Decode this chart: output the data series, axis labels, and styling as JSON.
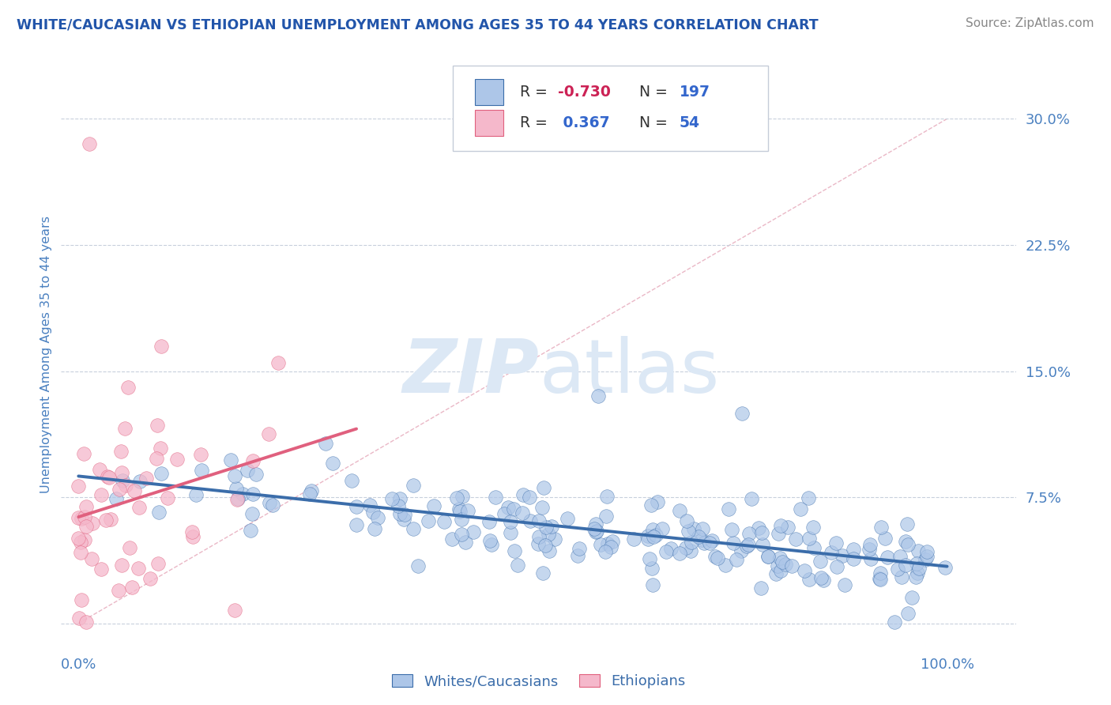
{
  "title": "WHITE/CAUCASIAN VS ETHIOPIAN UNEMPLOYMENT AMONG AGES 35 TO 44 YEARS CORRELATION CHART",
  "source_text": "Source: ZipAtlas.com",
  "ylabel": "Unemployment Among Ages 35 to 44 years",
  "x_ticks": [
    0.0,
    0.25,
    0.5,
    0.75,
    1.0
  ],
  "x_tick_labels": [
    "0.0%",
    "",
    "",
    "",
    "100.0%"
  ],
  "y_ticks": [
    0.0,
    0.075,
    0.15,
    0.225,
    0.3
  ],
  "y_tick_labels": [
    "",
    "7.5%",
    "15.0%",
    "22.5%",
    "30.0%"
  ],
  "xlim": [
    -0.02,
    1.08
  ],
  "ylim": [
    -0.015,
    0.335
  ],
  "blue_scatter_color": "#adc6e8",
  "blue_line_color": "#3b6daa",
  "pink_scatter_color": "#f5b8cb",
  "pink_line_color": "#e0607e",
  "diag_line_color": "#e8b0c0",
  "grid_color": "#c8d0dc",
  "title_color": "#2255aa",
  "tick_label_color": "#4a80c0",
  "legend_text_color": "#3366cc",
  "legend_Rval_blue": "#cc2255",
  "legend_Rval_pink": "#3366cc",
  "watermark_color": "#dce8f5",
  "source_color": "#888888",
  "R_blue": -0.73,
  "N_blue": 197,
  "R_pink": 0.367,
  "N_pink": 54,
  "blue_n": 197,
  "pink_n": 54,
  "blue_seed": 123,
  "pink_seed": 456
}
